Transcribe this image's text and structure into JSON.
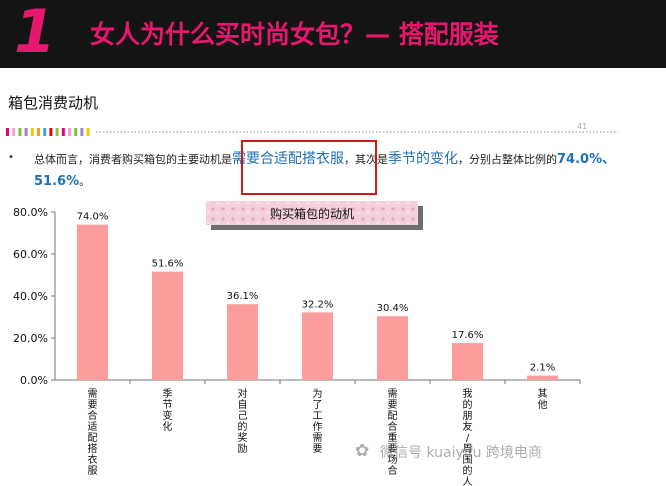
{
  "banner": {
    "number": "1",
    "title": "女人为什么买时尚女包？— 搭配服装"
  },
  "slide_title": "箱包消费动机",
  "page_number": "41",
  "summary": {
    "bullet": "•",
    "t1": "总体而言，消费者购买箱包的主要动机是",
    "h1": "需要合适配搭衣服",
    "t2": "，其次是",
    "h2": "季节的变化",
    "t3": "，分别占整体比例的",
    "p1": "74.0%",
    "sep": "、",
    "p2": "51.6%",
    "t4": "。"
  },
  "deco_colors": [
    "#e6007e",
    "#f4a6c8",
    "#7fbf3f",
    "#a67fc7",
    "#f7c800",
    "#f59a1e",
    "#3aa6dd",
    "#e60012",
    "#8cc63f"
  ],
  "watermark": {
    "icon": "wechat-icon",
    "text": "微信号 kuaiyifu 跨境电商"
  },
  "chart_data": {
    "type": "bar",
    "title": "购买箱包的动机",
    "categories": [
      "需要合适配搭衣服",
      "季节变化",
      "对自己的奖励",
      "为了工作需要",
      "需要配合重要场合",
      "我的朋友/周围的人有",
      "其他"
    ],
    "values": [
      74.0,
      51.6,
      36.1,
      32.2,
      30.4,
      17.6,
      2.1
    ],
    "value_labels": [
      "74.0%",
      "51.6%",
      "36.1%",
      "32.2%",
      "30.4%",
      "17.6%",
      "2.1%"
    ],
    "yticks": [
      "0.0%",
      "20.0%",
      "40.0%",
      "60.0%",
      "80.0%"
    ],
    "ylim": [
      0,
      80
    ],
    "bar_color": "#fb9d9d",
    "grid": false,
    "xlabel": "",
    "ylabel": ""
  }
}
